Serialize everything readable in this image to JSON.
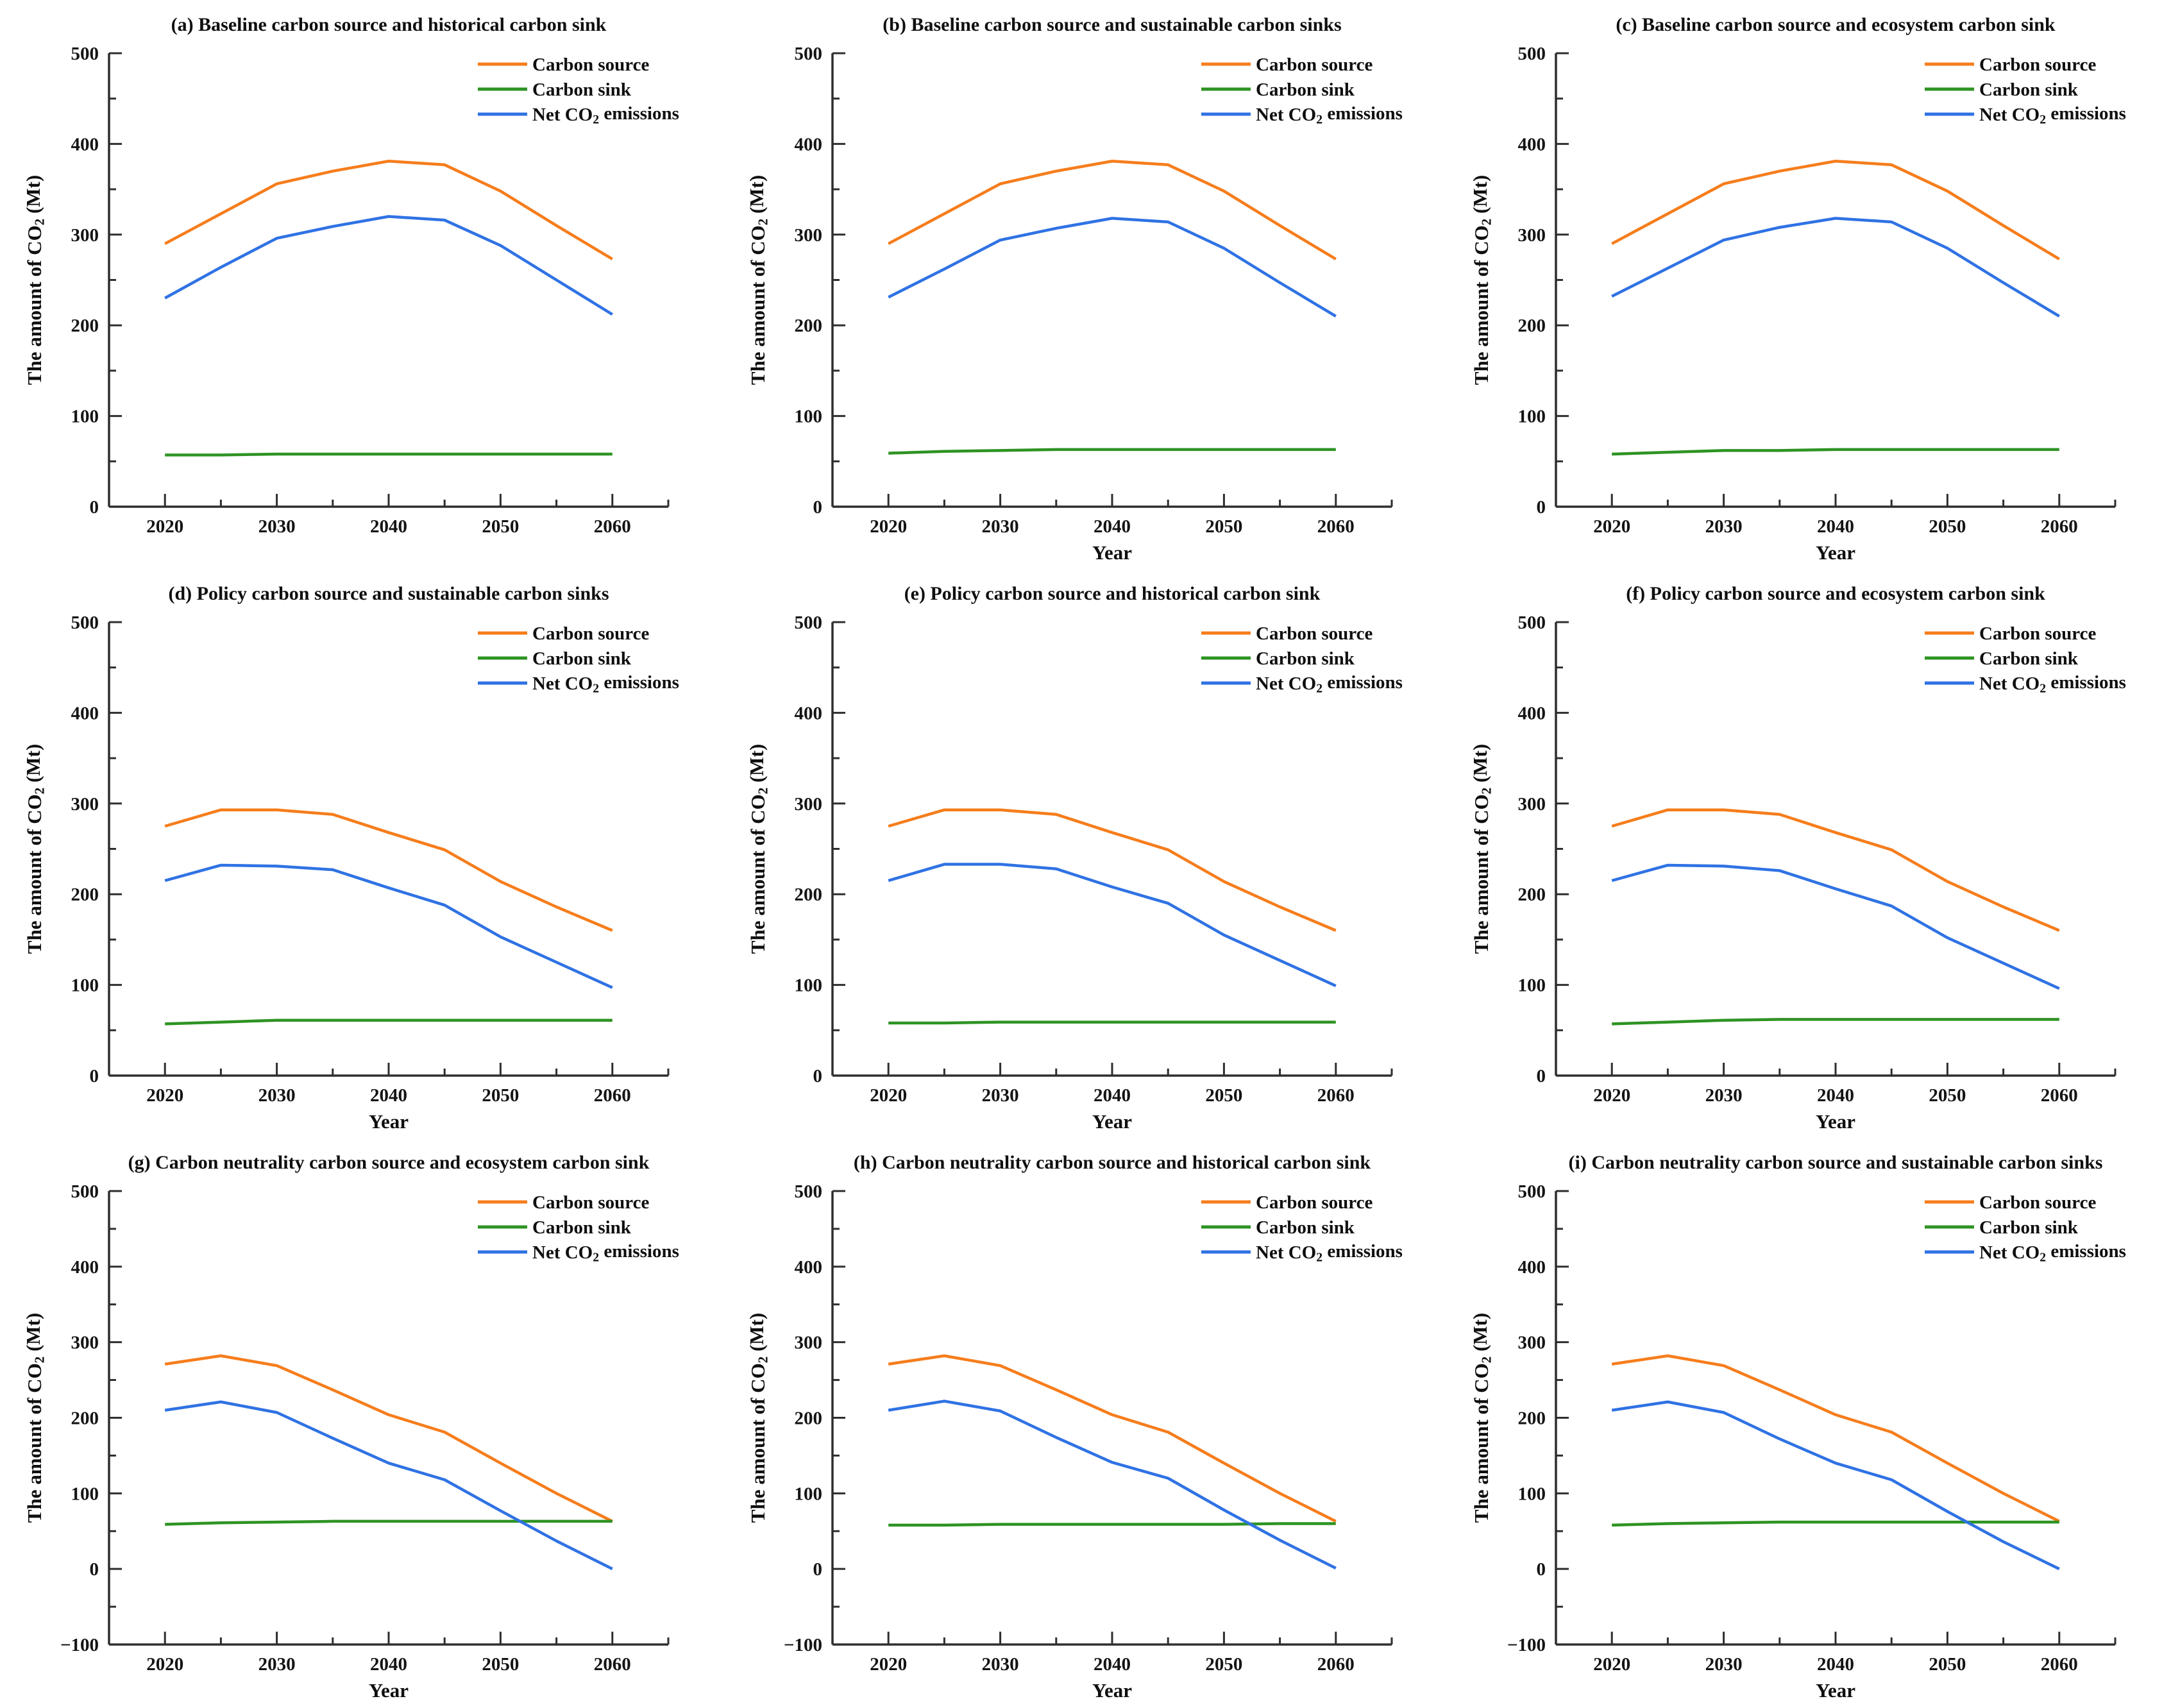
{
  "figure": {
    "background": "#ffffff",
    "text_color": "#0f0f0f",
    "axis_color": "#2e2e2e"
  },
  "axes": {
    "xlim": [
      2015,
      2065
    ],
    "xticks_major": [
      2020,
      2030,
      2040,
      2050,
      2060
    ],
    "xticks_minor": [
      2025,
      2035,
      2045,
      2055,
      2065
    ],
    "y_minor_step": 50,
    "xlabel": "Year",
    "ylabel": "The amount of CO₂ (Mt)"
  },
  "legend": [
    {
      "label": "Carbon source",
      "color": "#F67D1C"
    },
    {
      "label": "Carbon sink",
      "color": "#2E9323"
    },
    {
      "label": "Net CO₂ emissions",
      "color": "#2F72E4"
    }
  ],
  "chart_data": [
    {
      "id": "a",
      "type": "line",
      "title": "(a) Baseline carbon source and historical carbon sink",
      "xlabel": "",
      "ylabel": "The amount of CO₂ (Mt)",
      "ylim": [
        0,
        500
      ],
      "yticks": [
        0,
        100,
        200,
        300,
        400,
        500
      ],
      "x": [
        2020,
        2025,
        2030,
        2035,
        2040,
        2045,
        2050,
        2055,
        2060
      ],
      "series": [
        {
          "name": "Carbon source",
          "color": "#F67D1C",
          "values": [
            290,
            323,
            356,
            370,
            381,
            377,
            348,
            310,
            273
          ]
        },
        {
          "name": "Carbon sink",
          "color": "#2E9323",
          "values": [
            57,
            57,
            58,
            58,
            58,
            58,
            58,
            58,
            58
          ]
        },
        {
          "name": "Net CO₂ emissions",
          "color": "#2F72E4",
          "values": [
            230,
            264,
            296,
            309,
            320,
            316,
            288,
            250,
            212
          ]
        }
      ]
    },
    {
      "id": "b",
      "type": "line",
      "title": "(b) Baseline carbon source and sustainable carbon sinks",
      "xlabel": "Year",
      "ylabel": "The amount of CO₂ (Mt)",
      "ylim": [
        0,
        500
      ],
      "yticks": [
        0,
        100,
        200,
        300,
        400,
        500
      ],
      "x": [
        2020,
        2025,
        2030,
        2035,
        2040,
        2045,
        2050,
        2055,
        2060
      ],
      "series": [
        {
          "name": "Carbon source",
          "color": "#F67D1C",
          "values": [
            290,
            323,
            356,
            370,
            381,
            377,
            348,
            310,
            273
          ]
        },
        {
          "name": "Carbon sink",
          "color": "#2E9323",
          "values": [
            59,
            61,
            62,
            63,
            63,
            63,
            63,
            63,
            63
          ]
        },
        {
          "name": "Net CO₂ emissions",
          "color": "#2F72E4",
          "values": [
            231,
            262,
            294,
            307,
            318,
            314,
            285,
            247,
            210
          ]
        }
      ]
    },
    {
      "id": "c",
      "type": "line",
      "title": "(c) Baseline carbon source and ecosystem carbon sink",
      "xlabel": "Year",
      "ylabel": "The amount of CO₂ (Mt)",
      "ylim": [
        0,
        500
      ],
      "yticks": [
        0,
        100,
        200,
        300,
        400,
        500
      ],
      "x": [
        2020,
        2025,
        2030,
        2035,
        2040,
        2045,
        2050,
        2055,
        2060
      ],
      "series": [
        {
          "name": "Carbon source",
          "color": "#F67D1C",
          "values": [
            290,
            323,
            356,
            370,
            381,
            377,
            348,
            310,
            273
          ]
        },
        {
          "name": "Carbon sink",
          "color": "#2E9323",
          "values": [
            58,
            60,
            62,
            62,
            63,
            63,
            63,
            63,
            63
          ]
        },
        {
          "name": "Net CO₂ emissions",
          "color": "#2F72E4",
          "values": [
            232,
            263,
            294,
            308,
            318,
            314,
            285,
            247,
            210
          ]
        }
      ]
    },
    {
      "id": "d",
      "type": "line",
      "title": "(d) Policy carbon source and sustainable carbon sinks",
      "xlabel": "Year",
      "ylabel": "The amount of CO₂ (Mt)",
      "ylim": [
        0,
        500
      ],
      "yticks": [
        0,
        100,
        200,
        300,
        400,
        500
      ],
      "x": [
        2020,
        2025,
        2030,
        2035,
        2040,
        2045,
        2050,
        2055,
        2060
      ],
      "series": [
        {
          "name": "Carbon source",
          "color": "#F67D1C",
          "values": [
            275,
            293,
            293,
            288,
            268,
            249,
            214,
            186,
            160
          ]
        },
        {
          "name": "Carbon sink",
          "color": "#2E9323",
          "values": [
            57,
            59,
            61,
            61,
            61,
            61,
            61,
            61,
            61
          ]
        },
        {
          "name": "Net CO₂ emissions",
          "color": "#2F72E4",
          "values": [
            215,
            232,
            231,
            227,
            207,
            188,
            153,
            125,
            97
          ]
        }
      ]
    },
    {
      "id": "e",
      "type": "line",
      "title": "(e) Policy carbon source and historical carbon sink",
      "xlabel": "Year",
      "ylabel": "The amount of CO₂ (Mt)",
      "ylim": [
        0,
        500
      ],
      "yticks": [
        0,
        100,
        200,
        300,
        400,
        500
      ],
      "x": [
        2020,
        2025,
        2030,
        2035,
        2040,
        2045,
        2050,
        2055,
        2060
      ],
      "series": [
        {
          "name": "Carbon source",
          "color": "#F67D1C",
          "values": [
            275,
            293,
            293,
            288,
            268,
            249,
            214,
            186,
            160
          ]
        },
        {
          "name": "Carbon sink",
          "color": "#2E9323",
          "values": [
            58,
            58,
            59,
            59,
            59,
            59,
            59,
            59,
            59
          ]
        },
        {
          "name": "Net CO₂ emissions",
          "color": "#2F72E4",
          "values": [
            215,
            233,
            233,
            228,
            208,
            190,
            155,
            127,
            99
          ]
        }
      ]
    },
    {
      "id": "f",
      "type": "line",
      "title": "(f) Policy carbon source and ecosystem carbon sink",
      "xlabel": "Year",
      "ylabel": "The amount of CO₂ (Mt)",
      "ylim": [
        0,
        500
      ],
      "yticks": [
        0,
        100,
        200,
        300,
        400,
        500
      ],
      "x": [
        2020,
        2025,
        2030,
        2035,
        2040,
        2045,
        2050,
        2055,
        2060
      ],
      "series": [
        {
          "name": "Carbon source",
          "color": "#F67D1C",
          "values": [
            275,
            293,
            293,
            288,
            268,
            249,
            214,
            186,
            160
          ]
        },
        {
          "name": "Carbon sink",
          "color": "#2E9323",
          "values": [
            57,
            59,
            61,
            62,
            62,
            62,
            62,
            62,
            62
          ]
        },
        {
          "name": "Net CO₂ emissions",
          "color": "#2F72E4",
          "values": [
            215,
            232,
            231,
            226,
            206,
            187,
            152,
            124,
            96
          ]
        }
      ]
    },
    {
      "id": "g",
      "type": "line",
      "title": "(g) Carbon neutrality carbon source and ecosystem carbon sink",
      "xlabel": "Year",
      "ylabel": "The amount of CO₂ (Mt)",
      "ylim": [
        -100,
        500
      ],
      "yticks": [
        -100,
        0,
        100,
        200,
        300,
        400,
        500
      ],
      "x": [
        2020,
        2025,
        2030,
        2035,
        2040,
        2045,
        2050,
        2055,
        2060
      ],
      "series": [
        {
          "name": "Carbon source",
          "color": "#F67D1C",
          "values": [
            271,
            282,
            269,
            237,
            204,
            181,
            140,
            100,
            63
          ]
        },
        {
          "name": "Carbon sink",
          "color": "#2E9323",
          "values": [
            59,
            61,
            62,
            63,
            63,
            63,
            63,
            63,
            63
          ]
        },
        {
          "name": "Net CO₂ emissions",
          "color": "#2F72E4",
          "values": [
            210,
            221,
            207,
            173,
            140,
            118,
            77,
            37,
            0
          ]
        }
      ]
    },
    {
      "id": "h",
      "type": "line",
      "title": "(h) Carbon neutrality carbon source and historical carbon sink",
      "xlabel": "Year",
      "ylabel": "The amount of CO₂ (Mt)",
      "ylim": [
        -100,
        500
      ],
      "yticks": [
        -100,
        0,
        100,
        200,
        300,
        400,
        500
      ],
      "x": [
        2020,
        2025,
        2030,
        2035,
        2040,
        2045,
        2050,
        2055,
        2060
      ],
      "series": [
        {
          "name": "Carbon source",
          "color": "#F67D1C",
          "values": [
            271,
            282,
            269,
            237,
            204,
            181,
            140,
            100,
            63
          ]
        },
        {
          "name": "Carbon sink",
          "color": "#2E9323",
          "values": [
            58,
            58,
            59,
            59,
            59,
            59,
            59,
            60,
            60
          ]
        },
        {
          "name": "Net CO₂ emissions",
          "color": "#2F72E4",
          "values": [
            210,
            222,
            209,
            174,
            141,
            120,
            78,
            38,
            1
          ]
        }
      ]
    },
    {
      "id": "i",
      "type": "line",
      "title": "(i) Carbon neutrality carbon source and sustainable carbon sinks",
      "xlabel": "Year",
      "ylabel": "The amount of CO₂ (Mt)",
      "ylim": [
        -100,
        500
      ],
      "yticks": [
        -100,
        0,
        100,
        200,
        300,
        400,
        500
      ],
      "x": [
        2020,
        2025,
        2030,
        2035,
        2040,
        2045,
        2050,
        2055,
        2060
      ],
      "series": [
        {
          "name": "Carbon source",
          "color": "#F67D1C",
          "values": [
            271,
            282,
            269,
            237,
            204,
            181,
            140,
            100,
            63
          ]
        },
        {
          "name": "Carbon sink",
          "color": "#2E9323",
          "values": [
            58,
            60,
            61,
            62,
            62,
            62,
            62,
            62,
            62
          ]
        },
        {
          "name": "Net CO₂ emissions",
          "color": "#2F72E4",
          "values": [
            210,
            221,
            207,
            172,
            140,
            118,
            76,
            36,
            0
          ]
        }
      ]
    }
  ]
}
